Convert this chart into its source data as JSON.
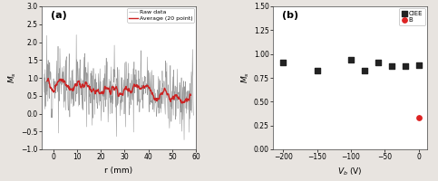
{
  "panel_a": {
    "title": "(a)",
    "xlabel": "r (mm)",
    "ylabel": "M_s",
    "xlim": [
      -5,
      60
    ],
    "ylim": [
      -1.0,
      3.0
    ],
    "yticks": [
      -1.0,
      -0.5,
      0.0,
      0.5,
      1.0,
      1.5,
      2.0,
      2.5,
      3.0
    ],
    "xticks": [
      0,
      10,
      20,
      30,
      40,
      50,
      60
    ],
    "raw_color": "#999999",
    "avg_color": "#cc2222",
    "legend_raw": "Raw data",
    "legend_avg": "Average (20 point)"
  },
  "panel_b": {
    "title": "(b)",
    "xlabel": "V_b (V)",
    "ylabel": "M_s",
    "xlim": [
      -215,
      12
    ],
    "ylim": [
      0.0,
      1.5
    ],
    "yticks": [
      0.0,
      0.25,
      0.5,
      0.75,
      1.0,
      1.25,
      1.5
    ],
    "xticks": [
      -200,
      -150,
      -100,
      -50,
      0
    ],
    "ciee_x": [
      -200,
      -150,
      -100,
      -80,
      -60,
      -40,
      -20,
      0
    ],
    "ciee_y": [
      0.91,
      0.83,
      0.94,
      0.83,
      0.91,
      0.875,
      0.87,
      0.88
    ],
    "b_x": [
      0
    ],
    "b_y": [
      0.33
    ],
    "ciee_color": "#222222",
    "b_color": "#dd2222",
    "legend_ciee": "CIEE",
    "legend_b": "B"
  },
  "background_color": "#ffffff",
  "fig_bg_color": "#e8e4e0"
}
